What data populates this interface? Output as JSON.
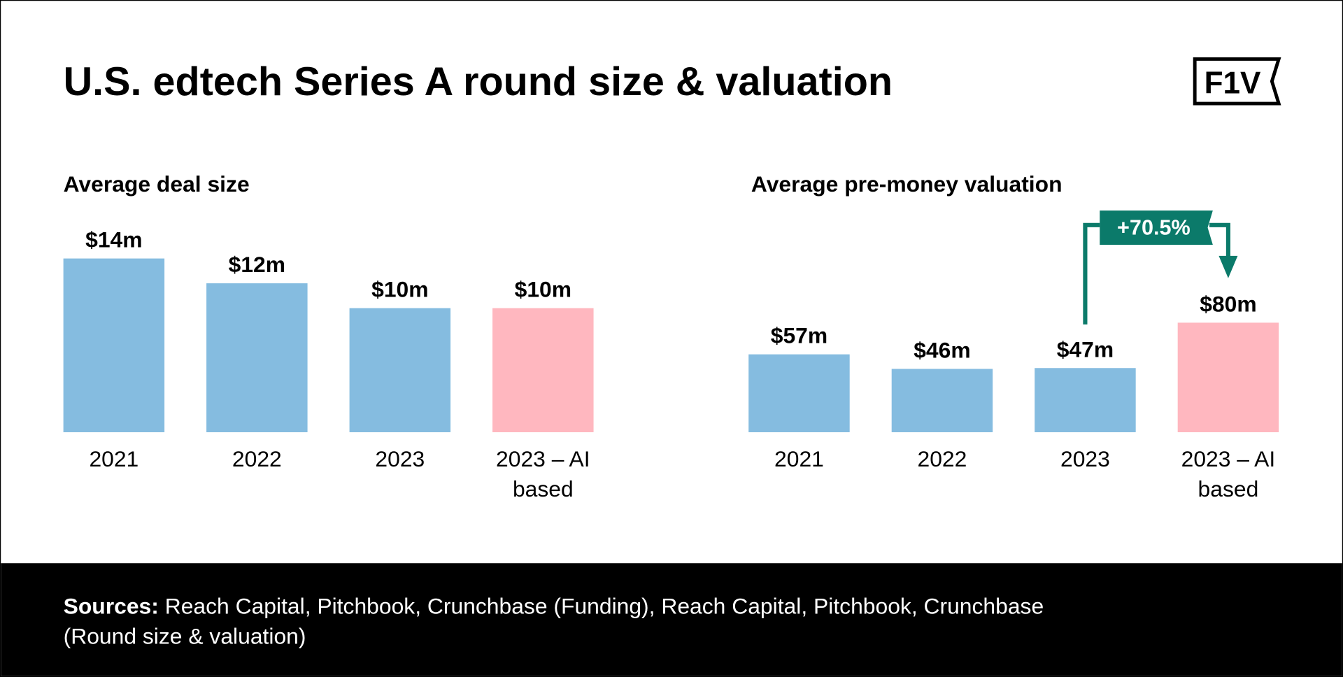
{
  "title": "U.S. edtech Series A round size & valuation",
  "logo": "F1V",
  "chart_data": [
    {
      "type": "bar",
      "title": "Average deal size",
      "categories": [
        "2021",
        "2022",
        "2023",
        "2023 – AI based"
      ],
      "values": [
        14,
        12,
        10,
        10
      ],
      "value_labels": [
        "$14m",
        "$12m",
        "$10m",
        "$10m"
      ],
      "colors": [
        "#85bce0",
        "#85bce0",
        "#85bce0",
        "#ffb7bf"
      ]
    },
    {
      "type": "bar",
      "title": "Average pre-money valuation",
      "categories": [
        "2021",
        "2022",
        "2023",
        "2023 – AI based"
      ],
      "values": [
        57,
        46,
        47,
        80
      ],
      "value_labels": [
        "$57m",
        "$46m",
        "$47m",
        "$80m"
      ],
      "colors": [
        "#85bce0",
        "#85bce0",
        "#85bce0",
        "#ffb7bf"
      ],
      "annotation": "+70.5%"
    }
  ],
  "footer": {
    "label": "Sources:",
    "text": "Reach Capital, Pitchbook, Crunchbase (Funding), Reach Capital, Pitchbook, Crunchbase (Round size & valuation)"
  }
}
